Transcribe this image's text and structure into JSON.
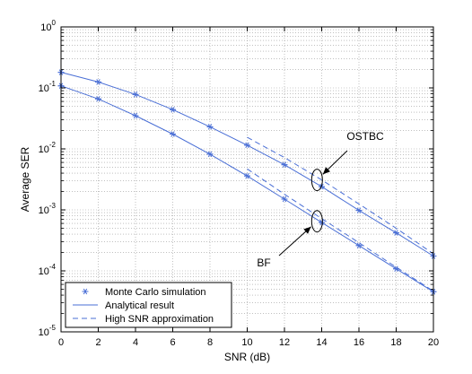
{
  "chart_data": {
    "type": "line",
    "xlabel": "SNR (dB)",
    "ylabel": "Average SER",
    "xlim": [
      0,
      20
    ],
    "ylim": [
      1e-05,
      1
    ],
    "yscale": "log",
    "grid": true,
    "legend_position": "bottom-left",
    "x_ticks": [
      "0",
      "2",
      "4",
      "6",
      "8",
      "10",
      "12",
      "14",
      "16",
      "18",
      "20"
    ],
    "y_ticks": [
      {
        "mantissa": "10",
        "exponent": "0"
      },
      {
        "mantissa": "10",
        "exponent": "-1"
      },
      {
        "mantissa": "10",
        "exponent": "-2"
      },
      {
        "mantissa": "10",
        "exponent": "-3"
      },
      {
        "mantissa": "10",
        "exponent": "-4"
      },
      {
        "mantissa": "10",
        "exponent": "-5"
      }
    ],
    "legend": [
      {
        "label": "Monte Carlo simulation",
        "style": "marker"
      },
      {
        "label": "Analytical result",
        "style": "solid"
      },
      {
        "label": "High SNR approximation",
        "style": "dashed"
      }
    ],
    "series": [
      {
        "name": "OSTBC",
        "role": "analytical",
        "style": "solid",
        "x": [
          0,
          2,
          4,
          6,
          8,
          10,
          12,
          14,
          16,
          18,
          20
        ],
        "y": [
          0.18,
          0.125,
          0.078,
          0.044,
          0.023,
          0.0115,
          0.0055,
          0.0024,
          0.00098,
          0.00042,
          0.000175
        ]
      },
      {
        "name": "OSTBC",
        "role": "monte_carlo",
        "style": "marker",
        "x": [
          0,
          2,
          4,
          6,
          8,
          10,
          12,
          14,
          16,
          18,
          20
        ],
        "y": [
          0.18,
          0.125,
          0.078,
          0.044,
          0.023,
          0.0115,
          0.0055,
          0.0024,
          0.00098,
          0.00042,
          0.000175
        ]
      },
      {
        "name": "OSTBC",
        "role": "high_snr_approx",
        "style": "dashed",
        "x": [
          10,
          12,
          14,
          16,
          18,
          20
        ],
        "y": [
          0.0155,
          0.0072,
          0.0031,
          0.00125,
          0.0005,
          0.00019
        ]
      },
      {
        "name": "BF",
        "role": "analytical",
        "style": "solid",
        "x": [
          0,
          2,
          4,
          6,
          8,
          10,
          12,
          14,
          16,
          18,
          20
        ],
        "y": [
          0.108,
          0.066,
          0.035,
          0.0175,
          0.0082,
          0.0036,
          0.0015,
          0.00062,
          0.00026,
          0.000108,
          4.55e-05
        ]
      },
      {
        "name": "BF",
        "role": "monte_carlo",
        "style": "marker",
        "x": [
          0,
          2,
          4,
          6,
          8,
          10,
          12,
          14,
          16,
          18,
          20
        ],
        "y": [
          0.108,
          0.066,
          0.035,
          0.0175,
          0.0082,
          0.0036,
          0.0015,
          0.00062,
          0.00026,
          0.000108,
          4.55e-05
        ]
      },
      {
        "name": "BF",
        "role": "high_snr_approx",
        "style": "dashed",
        "x": [
          10,
          12,
          14,
          16,
          18,
          20
        ],
        "y": [
          0.0047,
          0.0018,
          0.00072,
          0.00029,
          0.000115,
          4.65e-05
        ]
      }
    ],
    "annotations": [
      {
        "text": "OSTBC",
        "ellipse_at": {
          "x": 13.75,
          "y": 0.0031
        }
      },
      {
        "text": "BF",
        "ellipse_at": {
          "x": 13.75,
          "y": 0.00065
        }
      }
    ],
    "colors": {
      "series": "#4a6fd6",
      "axis": "#000000",
      "grid": "#9a9a9a"
    }
  }
}
